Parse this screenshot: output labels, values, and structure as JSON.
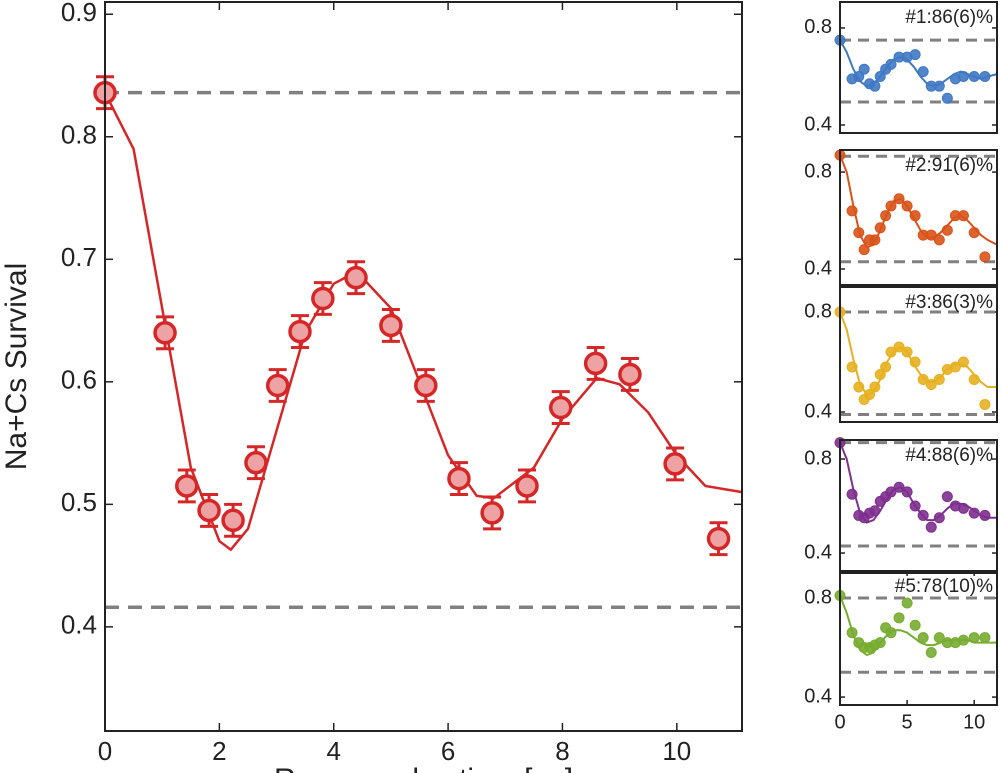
{
  "chart_data": [
    {
      "type": "scatter",
      "xlabel": "Raman pulse time [µs]",
      "ylabel": "Na+Cs Survival",
      "color": "#d62728",
      "fill": "#eda3a3",
      "x": [
        0,
        1.05,
        1.43,
        1.82,
        2.24,
        2.64,
        3.02,
        3.41,
        3.81,
        4.39,
        5.0,
        5.61,
        6.19,
        6.77,
        7.38,
        7.97,
        8.58,
        9.18,
        9.97,
        10.73
      ],
      "values": [
        0.836,
        0.64,
        0.515,
        0.495,
        0.487,
        0.534,
        0.597,
        0.641,
        0.668,
        0.685,
        0.646,
        0.597,
        0.521,
        0.493,
        0.515,
        0.579,
        0.615,
        0.606,
        0.533,
        0.472
      ],
      "errors": [
        0.013,
        0.013,
        0.013,
        0.013,
        0.013,
        0.013,
        0.013,
        0.013,
        0.013,
        0.013,
        0.013,
        0.013,
        0.013,
        0.013,
        0.013,
        0.013,
        0.013,
        0.013,
        0.013,
        0.013
      ],
      "fit": {
        "x": [
          0,
          0.5,
          1,
          1.5,
          2,
          2.2,
          2.5,
          3,
          3.5,
          4,
          4.4,
          5,
          5.5,
          6,
          6.5,
          6.8,
          7.5,
          8,
          8.6,
          9,
          9.5,
          10,
          10.5,
          11.14
        ],
        "values": [
          0.836,
          0.79,
          0.66,
          0.53,
          0.47,
          0.463,
          0.48,
          0.56,
          0.64,
          0.68,
          0.69,
          0.66,
          0.6,
          0.54,
          0.507,
          0.505,
          0.53,
          0.57,
          0.603,
          0.598,
          0.575,
          0.54,
          0.515,
          0.51
        ]
      },
      "hlines": [
        0.836,
        0.416
      ],
      "xlim": [
        0,
        11.14
      ],
      "ylim": [
        0.315,
        0.91
      ],
      "xticks": [
        0,
        2,
        4,
        6,
        8,
        10
      ],
      "yticks": [
        0.4,
        0.5,
        0.6,
        0.7,
        0.8,
        0.9
      ]
    },
    {
      "type": "scatter",
      "annotation": "#1:86(6)%",
      "color": "#3f78c4",
      "x": [
        0,
        0.9,
        1.4,
        1.8,
        2.2,
        2.6,
        3,
        3.4,
        3.8,
        4.4,
        5,
        5.6,
        6.2,
        6.8,
        7.4,
        8,
        8.6,
        9.2,
        10,
        10.8
      ],
      "values": [
        0.75,
        0.59,
        0.6,
        0.63,
        0.57,
        0.56,
        0.6,
        0.63,
        0.65,
        0.68,
        0.68,
        0.69,
        0.62,
        0.56,
        0.56,
        0.51,
        0.59,
        0.6,
        0.6,
        0.6
      ],
      "fit": {
        "x": [
          0,
          0.5,
          1,
          1.5,
          2,
          2.5,
          3,
          3.5,
          4,
          4.5,
          5,
          5.5,
          6,
          6.5,
          7,
          7.5,
          8,
          8.5,
          9,
          9.5,
          10,
          10.5,
          11,
          11.7
        ],
        "values": [
          0.75,
          0.7,
          0.63,
          0.58,
          0.56,
          0.57,
          0.6,
          0.64,
          0.67,
          0.68,
          0.67,
          0.64,
          0.6,
          0.57,
          0.56,
          0.57,
          0.59,
          0.61,
          0.62,
          0.61,
          0.6,
          0.59,
          0.6,
          0.61
        ]
      },
      "hlines": [
        0.75,
        0.495
      ],
      "xlim": [
        0,
        11.7
      ],
      "ylim": [
        0.367,
        0.907
      ],
      "yticks": [
        0.4,
        0.8
      ]
    },
    {
      "type": "scatter",
      "annotation": "#2:91(6)%",
      "color": "#d95319",
      "x": [
        0,
        0.9,
        1.4,
        1.8,
        2.2,
        2.6,
        3,
        3.4,
        3.8,
        4.4,
        5,
        5.6,
        6.2,
        6.8,
        7.4,
        8,
        8.6,
        9.2,
        10,
        10.8
      ],
      "values": [
        0.87,
        0.64,
        0.55,
        0.48,
        0.52,
        0.52,
        0.57,
        0.62,
        0.66,
        0.69,
        0.66,
        0.62,
        0.54,
        0.54,
        0.52,
        0.56,
        0.62,
        0.62,
        0.55,
        0.45
      ],
      "fit": {
        "x": [
          0,
          0.5,
          1,
          1.5,
          2,
          2.5,
          3,
          3.5,
          4,
          4.5,
          5,
          5.5,
          6,
          6.5,
          7,
          7.5,
          8,
          8.5,
          9,
          9.5,
          10,
          10.5,
          11,
          11.7
        ],
        "values": [
          0.87,
          0.8,
          0.66,
          0.54,
          0.49,
          0.5,
          0.56,
          0.63,
          0.68,
          0.69,
          0.66,
          0.61,
          0.56,
          0.53,
          0.53,
          0.55,
          0.58,
          0.61,
          0.62,
          0.6,
          0.57,
          0.54,
          0.52,
          0.5
        ]
      },
      "hlines": [
        0.865,
        0.43
      ],
      "xlim": [
        0,
        11.7
      ],
      "ylim": [
        0.334,
        0.891
      ],
      "yticks": [
        0.4,
        0.8
      ]
    },
    {
      "type": "scatter",
      "annotation": "#3:86(3)%",
      "color": "#e6b020",
      "x": [
        0,
        0.9,
        1.4,
        1.8,
        2.2,
        2.6,
        3,
        3.4,
        3.8,
        4.4,
        5,
        5.6,
        6.2,
        6.8,
        7.4,
        8,
        8.6,
        9.2,
        10,
        10.8
      ],
      "values": [
        0.8,
        0.58,
        0.5,
        0.45,
        0.47,
        0.5,
        0.55,
        0.58,
        0.64,
        0.66,
        0.64,
        0.6,
        0.53,
        0.51,
        0.53,
        0.57,
        0.58,
        0.6,
        0.53,
        0.43
      ],
      "fit": {
        "x": [
          0,
          0.5,
          1,
          1.5,
          2,
          2.5,
          3,
          3.5,
          4,
          4.5,
          5,
          5.5,
          6,
          6.5,
          7,
          7.5,
          8,
          8.5,
          9,
          9.5,
          10,
          10.5,
          11,
          11.7
        ],
        "values": [
          0.8,
          0.73,
          0.61,
          0.51,
          0.47,
          0.48,
          0.53,
          0.6,
          0.64,
          0.66,
          0.64,
          0.59,
          0.55,
          0.52,
          0.52,
          0.54,
          0.57,
          0.59,
          0.59,
          0.58,
          0.55,
          0.52,
          0.5,
          0.5
        ]
      },
      "hlines": [
        0.8,
        0.39
      ],
      "xlim": [
        0,
        11.7
      ],
      "ylim": [
        0.36,
        0.9
      ],
      "yticks": [
        0.4,
        0.8
      ]
    },
    {
      "type": "scatter",
      "annotation": "#4:88(6)%",
      "color": "#7e2f8e",
      "x": [
        0,
        0.9,
        1.4,
        1.8,
        2.2,
        2.6,
        3,
        3.4,
        3.8,
        4.4,
        5,
        5.6,
        6.2,
        6.8,
        7.4,
        8,
        8.6,
        9.2,
        10,
        10.8
      ],
      "values": [
        0.87,
        0.65,
        0.56,
        0.55,
        0.57,
        0.58,
        0.62,
        0.64,
        0.66,
        0.68,
        0.66,
        0.6,
        0.56,
        0.51,
        0.55,
        0.64,
        0.6,
        0.59,
        0.57,
        0.56
      ],
      "fit": {
        "x": [
          0,
          0.5,
          1,
          1.5,
          2,
          2.5,
          3,
          3.5,
          4,
          4.5,
          5,
          5.5,
          6,
          6.5,
          7,
          7.5,
          8,
          8.5,
          9,
          9.5,
          10,
          10.5,
          11,
          11.7
        ],
        "values": [
          0.87,
          0.8,
          0.67,
          0.57,
          0.53,
          0.54,
          0.58,
          0.63,
          0.67,
          0.68,
          0.66,
          0.61,
          0.57,
          0.54,
          0.54,
          0.56,
          0.59,
          0.61,
          0.61,
          0.6,
          0.58,
          0.56,
          0.55,
          0.55
        ]
      },
      "hlines": [
        0.87,
        0.43
      ],
      "xlim": [
        0,
        11.7
      ],
      "ylim": [
        0.315,
        0.881
      ],
      "yticks": [
        0.4,
        0.8
      ]
    },
    {
      "type": "scatter",
      "annotation": "#5:78(10)%",
      "color": "#77ac30",
      "x": [
        0,
        0.9,
        1.4,
        1.8,
        2.2,
        2.6,
        3,
        3.4,
        3.8,
        4.4,
        5,
        5.6,
        6.2,
        6.8,
        7.4,
        8,
        8.6,
        9.2,
        10,
        10.8
      ],
      "values": [
        0.81,
        0.66,
        0.62,
        0.6,
        0.6,
        0.61,
        0.62,
        0.68,
        0.66,
        0.72,
        0.78,
        0.69,
        0.64,
        0.58,
        0.64,
        0.62,
        0.62,
        0.63,
        0.64,
        0.64
      ],
      "fit": {
        "x": [
          0,
          0.5,
          1,
          1.5,
          2,
          2.5,
          3,
          3.5,
          4,
          4.5,
          5,
          5.5,
          6,
          6.5,
          7,
          7.5,
          8,
          8.5,
          9,
          9.5,
          10,
          10.5,
          11,
          11.7
        ],
        "values": [
          0.81,
          0.74,
          0.65,
          0.59,
          0.57,
          0.58,
          0.62,
          0.65,
          0.67,
          0.67,
          0.66,
          0.64,
          0.62,
          0.61,
          0.61,
          0.62,
          0.63,
          0.63,
          0.63,
          0.63,
          0.62,
          0.62,
          0.62,
          0.62
        ]
      },
      "hlines": [
        0.8,
        0.5
      ],
      "xlim": [
        0,
        11.7
      ],
      "ylim": [
        0.368,
        0.909
      ],
      "xticks": [
        0,
        5,
        10
      ],
      "yticks": [
        0.4,
        0.8
      ]
    }
  ]
}
